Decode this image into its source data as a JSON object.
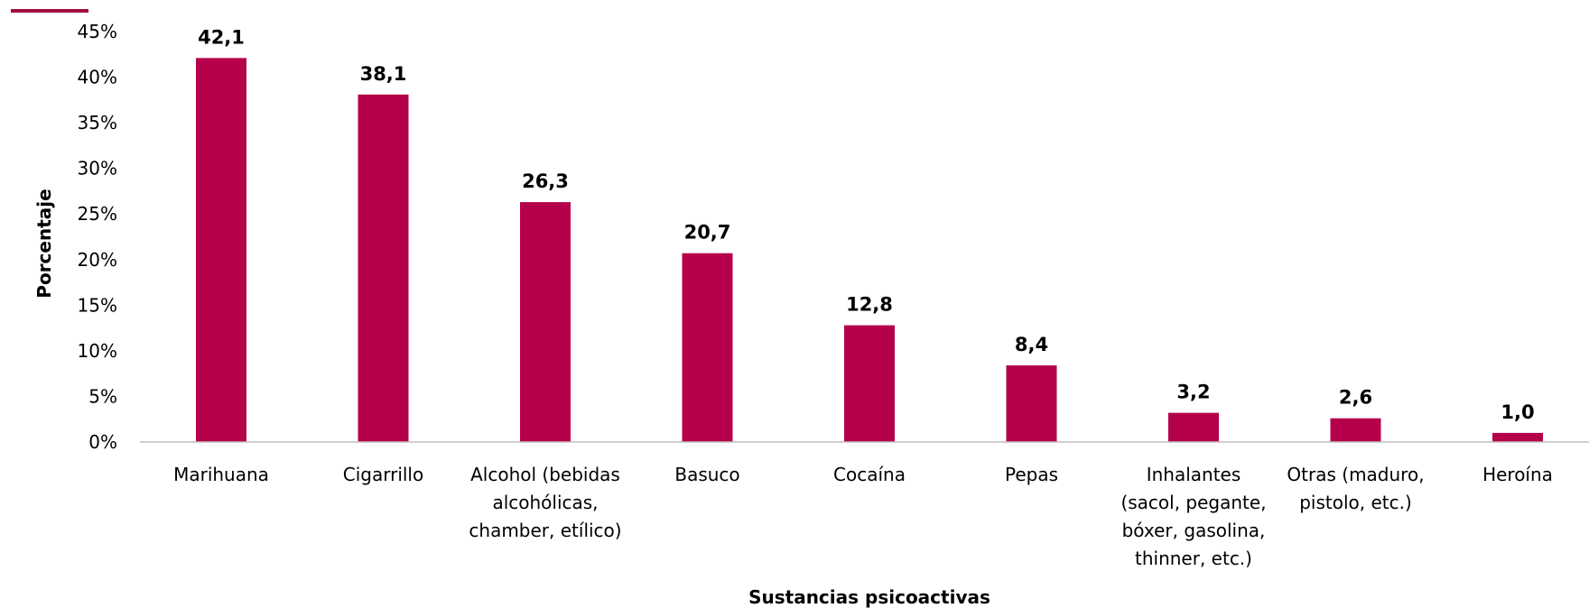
{
  "colors": {
    "bar": "#b5004b",
    "axis": "#bfbfbf",
    "accent_line": "#a0103f"
  },
  "chart_data": {
    "type": "bar",
    "categories": [
      [
        "Marihuana"
      ],
      [
        "Cigarrillo"
      ],
      [
        "Alcohol (bebidas",
        "alcohólicas,",
        "chamber, etílico)"
      ],
      [
        "Basuco"
      ],
      [
        "Cocaína"
      ],
      [
        "Pepas"
      ],
      [
        "Inhalantes",
        "(sacol, pegante,",
        "bóxer, gasolina,",
        "thinner, etc.)"
      ],
      [
        "Otras (maduro,",
        "pistolo, etc.)"
      ],
      [
        "Heroína"
      ]
    ],
    "values": [
      42.1,
      38.1,
      26.3,
      20.7,
      12.8,
      8.4,
      3.2,
      2.6,
      1.0
    ],
    "data_labels": [
      "42,1",
      "38,1",
      "26,3",
      "20,7",
      "12,8",
      "8,4",
      "3,2",
      "2,6",
      "1,0"
    ],
    "yticks": [
      "0%",
      "5%",
      "10%",
      "15%",
      "20%",
      "25%",
      "30%",
      "35%",
      "40%",
      "45%"
    ],
    "ylim": [
      0,
      45
    ],
    "ylabel": "Porcentaje",
    "xlabel": "Sustancias psicoactivas",
    "grid": false,
    "legend": "none"
  }
}
